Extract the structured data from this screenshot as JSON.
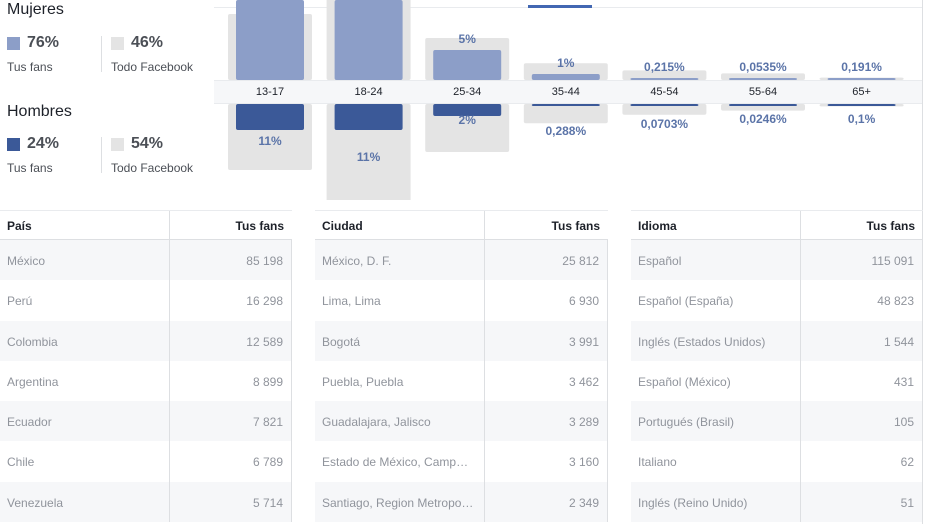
{
  "colors": {
    "women": "#8c9ec8",
    "men": "#3b5998",
    "facebook": "#e4e4e4",
    "pct_text": "#5b74a8"
  },
  "gender": {
    "women": {
      "title": "Mujeres",
      "fans_pct": "76%",
      "fans_label": "Tus fans",
      "fb_pct": "46%",
      "fb_label": "Todo Facebook"
    },
    "men": {
      "title": "Hombres",
      "fans_pct": "24%",
      "fans_label": "Tus fans",
      "fb_pct": "54%",
      "fb_label": "Todo Facebook"
    }
  },
  "chart_data": {
    "type": "bar",
    "categories": [
      "13-17",
      "18-24",
      "25-34",
      "35-44",
      "45-54",
      "55-64",
      "65+"
    ],
    "series": [
      {
        "name": "Mujeres",
        "values": [
          null,
          null,
          5,
          1,
          0.215,
          0.0535,
          0.191
        ],
        "labels": [
          "",
          "",
          "5%",
          "1%",
          "0,215%",
          "0,0535%",
          "0,191%"
        ]
      },
      {
        "name": "Hombres",
        "values": [
          11,
          11,
          2,
          0.288,
          0.0703,
          0.0246,
          0.1
        ],
        "labels": [
          "11%",
          "11%",
          "2%",
          "0,288%",
          "0,0703%",
          "0,0246%",
          "0,1%"
        ]
      }
    ]
  },
  "tables": [
    {
      "h1": "País",
      "h2": "Tus fans",
      "rows": [
        [
          "México",
          "85 198"
        ],
        [
          "Perú",
          "16 298"
        ],
        [
          "Colombia",
          "12 589"
        ],
        [
          "Argentina",
          "8 899"
        ],
        [
          "Ecuador",
          "7 821"
        ],
        [
          "Chile",
          "6 789"
        ],
        [
          "Venezuela",
          "5 714"
        ]
      ]
    },
    {
      "h1": "Ciudad",
      "h2": "Tus fans",
      "rows": [
        [
          "México, D. F.",
          "25 812"
        ],
        [
          "Lima, Lima",
          "6 930"
        ],
        [
          "Bogotá",
          "3 991"
        ],
        [
          "Puebla, Puebla",
          "3 462"
        ],
        [
          "Guadalajara, Jalisco",
          "3 289"
        ],
        [
          "Estado de México, Camp…",
          "3 160"
        ],
        [
          "Santiago, Region Metropo…",
          "2 349"
        ]
      ]
    },
    {
      "h1": "Idioma",
      "h2": "Tus fans",
      "rows": [
        [
          "Español",
          "115 091"
        ],
        [
          "Español (España)",
          "48 823"
        ],
        [
          "Inglés (Estados Unidos)",
          "1 544"
        ],
        [
          "Español (México)",
          "431"
        ],
        [
          "Portugués (Brasil)",
          "105"
        ],
        [
          "Italiano",
          "62"
        ],
        [
          "Inglés (Reino Unido)",
          "51"
        ]
      ]
    }
  ]
}
